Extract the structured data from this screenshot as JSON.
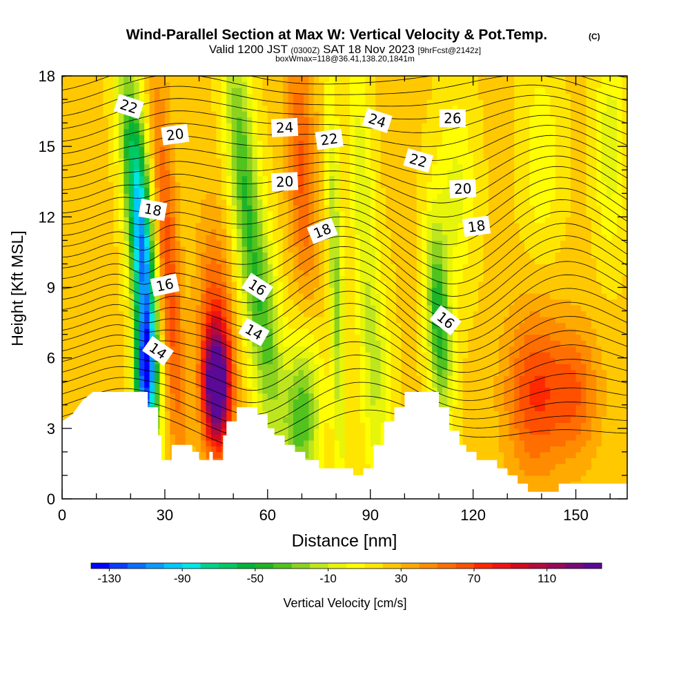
{
  "header": {
    "title": "Wind-Parallel Section at Max W: Vertical Velocity & Pot.Temp.",
    "title_mark": "(C)",
    "valid_prefix": "Valid 1200 JST",
    "valid_utc": "(0300Z)",
    "valid_date": "SAT 18 Nov 2023",
    "forecast": "[9hrFcst@2142z]",
    "box_info": "boxWmax=118@36.41,138.20,1841m"
  },
  "chart_data": {
    "type": "heatmap",
    "title": "Wind-Parallel Section at Max W: Vertical Velocity & Pot.Temp.",
    "xlabel": "Distance [nm]",
    "ylabel": "Height [Kft MSL]",
    "xlim": [
      0,
      165
    ],
    "ylim": [
      0,
      18
    ],
    "xticks": [
      0,
      30,
      60,
      90,
      120,
      150
    ],
    "yticks": [
      0,
      3,
      6,
      9,
      12,
      15,
      18
    ],
    "colorbar": {
      "label": "Vertical Velocity [cm/s]",
      "tick_labels": [
        "-130",
        "-90",
        "-50",
        "-10",
        "30",
        "70",
        "110"
      ],
      "tick_values": [
        -130,
        -90,
        -50,
        -10,
        30,
        70,
        110
      ],
      "range": [
        -140,
        140
      ],
      "bin_width": 10,
      "colors": [
        "#0000ff",
        "#0a3cff",
        "#0a6eff",
        "#0a9bff",
        "#00c8ff",
        "#00e6e6",
        "#00d28c",
        "#00c864",
        "#00b43c",
        "#1eb428",
        "#50c31e",
        "#8cd21e",
        "#bee61e",
        "#e6f50a",
        "#ffff00",
        "#ffe600",
        "#ffc800",
        "#ffaa00",
        "#ff8c00",
        "#ff6e00",
        "#ff5000",
        "#ff2800",
        "#f01414",
        "#d20a1e",
        "#b40a3c",
        "#960a5a",
        "#780a78",
        "#5a0a96"
      ]
    },
    "terrain_kft": [
      [
        0,
        3.3
      ],
      [
        3,
        3.6
      ],
      [
        6,
        4.2
      ],
      [
        9,
        4.55
      ],
      [
        25,
        4.55
      ],
      [
        25,
        3.9
      ],
      [
        28,
        3.9
      ],
      [
        28,
        2.7
      ],
      [
        29,
        2.7
      ],
      [
        29,
        1.65
      ],
      [
        32,
        1.65
      ],
      [
        32,
        2.3
      ],
      [
        38,
        2.3
      ],
      [
        38,
        2.0
      ],
      [
        40,
        2.0
      ],
      [
        40,
        1.65
      ],
      [
        43,
        1.65
      ],
      [
        43,
        2.0
      ],
      [
        44,
        2.0
      ],
      [
        44,
        1.65
      ],
      [
        47,
        1.65
      ],
      [
        47,
        2.7
      ],
      [
        48,
        2.7
      ],
      [
        48,
        3.3
      ],
      [
        51,
        3.3
      ],
      [
        51,
        3.9
      ],
      [
        57,
        3.9
      ],
      [
        57,
        3.6
      ],
      [
        60,
        3.6
      ],
      [
        60,
        3.0
      ],
      [
        62,
        3.0
      ],
      [
        62,
        2.7
      ],
      [
        65,
        2.7
      ],
      [
        65,
        2.3
      ],
      [
        68,
        2.3
      ],
      [
        68,
        2.0
      ],
      [
        71,
        2.0
      ],
      [
        71,
        1.65
      ],
      [
        75,
        1.65
      ],
      [
        75,
        1.3
      ],
      [
        85,
        1.3
      ],
      [
        85,
        1.0
      ],
      [
        88,
        1.0
      ],
      [
        88,
        1.3
      ],
      [
        91,
        1.3
      ],
      [
        91,
        2.3
      ],
      [
        94,
        2.3
      ],
      [
        94,
        3.3
      ],
      [
        97,
        3.3
      ],
      [
        97,
        3.9
      ],
      [
        100,
        3.9
      ],
      [
        100,
        4.55
      ],
      [
        110,
        4.55
      ],
      [
        110,
        3.9
      ],
      [
        113,
        3.9
      ],
      [
        113,
        2.9
      ],
      [
        116,
        2.9
      ],
      [
        116,
        2.3
      ],
      [
        118,
        2.3
      ],
      [
        118,
        2.0
      ],
      [
        121,
        2.0
      ],
      [
        121,
        1.65
      ],
      [
        127,
        1.65
      ],
      [
        127,
        1.3
      ],
      [
        130,
        1.3
      ],
      [
        130,
        1.0
      ],
      [
        133,
        1.0
      ],
      [
        133,
        0.65
      ],
      [
        136,
        0.65
      ],
      [
        136,
        0.3
      ],
      [
        145,
        0.3
      ],
      [
        145,
        0.65
      ],
      [
        165,
        0.65
      ]
    ],
    "w_field_cm_s": {
      "background": 22,
      "features": [
        {
          "x": 24,
          "y": 9.5,
          "w": -110,
          "sx": 2.5,
          "sy": 4.5,
          "tilt": -0.35
        },
        {
          "x": 24,
          "y": 5.0,
          "w": -100,
          "sx": 2.0,
          "sy": 1.8,
          "tilt": 0.0
        },
        {
          "x": 20,
          "y": 14.5,
          "w": -45,
          "sx": 2.5,
          "sy": 4.5,
          "tilt": -0.6
        },
        {
          "x": 31,
          "y": 9.5,
          "w": 45,
          "sx": 2.5,
          "sy": 6.0,
          "tilt": -0.4
        },
        {
          "x": 45,
          "y": 4.8,
          "w": 115,
          "sx": 2.6,
          "sy": 1.6,
          "tilt": 0.0
        },
        {
          "x": 45,
          "y": 6.5,
          "w": 50,
          "sx": 3.5,
          "sy": 3.5,
          "tilt": -0.2
        },
        {
          "x": 53,
          "y": 13.5,
          "w": -60,
          "sx": 3.0,
          "sy": 5.0,
          "tilt": -0.5
        },
        {
          "x": 60,
          "y": 7.0,
          "w": -45,
          "sx": 3.0,
          "sy": 3.5,
          "tilt": -0.4
        },
        {
          "x": 70,
          "y": 3.5,
          "w": -60,
          "sx": 4.0,
          "sy": 2.5,
          "tilt": 0.2
        },
        {
          "x": 80,
          "y": 9.0,
          "w": -45,
          "sx": 1.5,
          "sy": 6.0,
          "tilt": -0.2
        },
        {
          "x": 70,
          "y": 14.0,
          "w": 40,
          "sx": 3.0,
          "sy": 4.0,
          "tilt": -0.3
        },
        {
          "x": 88,
          "y": 12.0,
          "w": -30,
          "sx": 2.5,
          "sy": 5.5,
          "tilt": -0.3
        },
        {
          "x": 92,
          "y": 5.0,
          "w": -25,
          "sx": 3.0,
          "sy": 3.0,
          "tilt": 0.0
        },
        {
          "x": 110,
          "y": 7.5,
          "w": -70,
          "sx": 2.5,
          "sy": 3.0,
          "tilt": -0.3
        },
        {
          "x": 115,
          "y": 13.0,
          "w": -25,
          "sx": 4.0,
          "sy": 3.0,
          "tilt": 0.0
        },
        {
          "x": 138,
          "y": 4.5,
          "w": 48,
          "sx": 6.0,
          "sy": 2.5,
          "tilt": 0.0
        },
        {
          "x": 150,
          "y": 4.5,
          "w": 35,
          "sx": 5.0,
          "sy": 2.0,
          "tilt": 0.0
        },
        {
          "x": 160,
          "y": 15.0,
          "w": -30,
          "sx": 3.0,
          "sy": 3.0,
          "tilt": 0.0
        },
        {
          "x": 140,
          "y": 14.5,
          "w": -20,
          "sx": 4.0,
          "sy": 3.0,
          "tilt": 0.0
        }
      ]
    },
    "theta_contours": {
      "contour_interval": 1,
      "labels": [
        {
          "text": "22",
          "x": 19.5,
          "y": 16.7,
          "angle": 18
        },
        {
          "text": "20",
          "x": 33,
          "y": 15.5,
          "angle": -8
        },
        {
          "text": "18",
          "x": 26.5,
          "y": 12.3,
          "angle": 10
        },
        {
          "text": "16",
          "x": 30,
          "y": 9.1,
          "angle": -12
        },
        {
          "text": "14",
          "x": 28,
          "y": 6.3,
          "angle": 35
        },
        {
          "text": "24",
          "x": 65,
          "y": 15.8,
          "angle": -3
        },
        {
          "text": "22",
          "x": 78,
          "y": 15.3,
          "angle": -8
        },
        {
          "text": "20",
          "x": 65,
          "y": 13.5,
          "angle": -3
        },
        {
          "text": "18",
          "x": 76,
          "y": 11.4,
          "angle": -22
        },
        {
          "text": "16",
          "x": 57,
          "y": 9.0,
          "angle": 33
        },
        {
          "text": "14",
          "x": 56,
          "y": 7.1,
          "angle": 30
        },
        {
          "text": "24",
          "x": 92,
          "y": 16.1,
          "angle": 18
        },
        {
          "text": "26",
          "x": 114,
          "y": 16.2,
          "angle": 0
        },
        {
          "text": "22",
          "x": 104,
          "y": 14.4,
          "angle": 16
        },
        {
          "text": "20",
          "x": 117,
          "y": 13.2,
          "angle": -3
        },
        {
          "text": "18",
          "x": 121,
          "y": 11.6,
          "angle": -8
        },
        {
          "text": "16",
          "x": 112,
          "y": 7.6,
          "angle": 38
        }
      ]
    }
  }
}
